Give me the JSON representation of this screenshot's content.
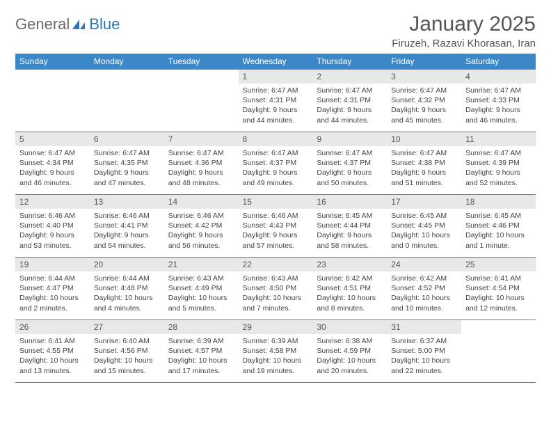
{
  "logo": {
    "general": "General",
    "blue": "Blue"
  },
  "title": "January 2025",
  "location": "Firuzeh, Razavi Khorasan, Iran",
  "colors": {
    "header_bg": "#3b87c8",
    "header_text": "#ffffff",
    "daynum_bg": "#e8e8e8",
    "border": "#3b87c8",
    "logo_gray": "#6a6a6a",
    "logo_blue": "#2a78b8"
  },
  "weekdays": [
    "Sunday",
    "Monday",
    "Tuesday",
    "Wednesday",
    "Thursday",
    "Friday",
    "Saturday"
  ],
  "weeks": [
    [
      null,
      null,
      null,
      {
        "n": "1",
        "sr": "6:47 AM",
        "ss": "4:31 PM",
        "dl": "9 hours and 44 minutes."
      },
      {
        "n": "2",
        "sr": "6:47 AM",
        "ss": "4:31 PM",
        "dl": "9 hours and 44 minutes."
      },
      {
        "n": "3",
        "sr": "6:47 AM",
        "ss": "4:32 PM",
        "dl": "9 hours and 45 minutes."
      },
      {
        "n": "4",
        "sr": "6:47 AM",
        "ss": "4:33 PM",
        "dl": "9 hours and 46 minutes."
      }
    ],
    [
      {
        "n": "5",
        "sr": "6:47 AM",
        "ss": "4:34 PM",
        "dl": "9 hours and 46 minutes."
      },
      {
        "n": "6",
        "sr": "6:47 AM",
        "ss": "4:35 PM",
        "dl": "9 hours and 47 minutes."
      },
      {
        "n": "7",
        "sr": "6:47 AM",
        "ss": "4:36 PM",
        "dl": "9 hours and 48 minutes."
      },
      {
        "n": "8",
        "sr": "6:47 AM",
        "ss": "4:37 PM",
        "dl": "9 hours and 49 minutes."
      },
      {
        "n": "9",
        "sr": "6:47 AM",
        "ss": "4:37 PM",
        "dl": "9 hours and 50 minutes."
      },
      {
        "n": "10",
        "sr": "6:47 AM",
        "ss": "4:38 PM",
        "dl": "9 hours and 51 minutes."
      },
      {
        "n": "11",
        "sr": "6:47 AM",
        "ss": "4:39 PM",
        "dl": "9 hours and 52 minutes."
      }
    ],
    [
      {
        "n": "12",
        "sr": "6:46 AM",
        "ss": "4:40 PM",
        "dl": "9 hours and 53 minutes."
      },
      {
        "n": "13",
        "sr": "6:46 AM",
        "ss": "4:41 PM",
        "dl": "9 hours and 54 minutes."
      },
      {
        "n": "14",
        "sr": "6:46 AM",
        "ss": "4:42 PM",
        "dl": "9 hours and 56 minutes."
      },
      {
        "n": "15",
        "sr": "6:46 AM",
        "ss": "4:43 PM",
        "dl": "9 hours and 57 minutes."
      },
      {
        "n": "16",
        "sr": "6:45 AM",
        "ss": "4:44 PM",
        "dl": "9 hours and 58 minutes."
      },
      {
        "n": "17",
        "sr": "6:45 AM",
        "ss": "4:45 PM",
        "dl": "10 hours and 0 minutes."
      },
      {
        "n": "18",
        "sr": "6:45 AM",
        "ss": "4:46 PM",
        "dl": "10 hours and 1 minute."
      }
    ],
    [
      {
        "n": "19",
        "sr": "6:44 AM",
        "ss": "4:47 PM",
        "dl": "10 hours and 2 minutes."
      },
      {
        "n": "20",
        "sr": "6:44 AM",
        "ss": "4:48 PM",
        "dl": "10 hours and 4 minutes."
      },
      {
        "n": "21",
        "sr": "6:43 AM",
        "ss": "4:49 PM",
        "dl": "10 hours and 5 minutes."
      },
      {
        "n": "22",
        "sr": "6:43 AM",
        "ss": "4:50 PM",
        "dl": "10 hours and 7 minutes."
      },
      {
        "n": "23",
        "sr": "6:42 AM",
        "ss": "4:51 PM",
        "dl": "10 hours and 8 minutes."
      },
      {
        "n": "24",
        "sr": "6:42 AM",
        "ss": "4:52 PM",
        "dl": "10 hours and 10 minutes."
      },
      {
        "n": "25",
        "sr": "6:41 AM",
        "ss": "4:54 PM",
        "dl": "10 hours and 12 minutes."
      }
    ],
    [
      {
        "n": "26",
        "sr": "6:41 AM",
        "ss": "4:55 PM",
        "dl": "10 hours and 13 minutes."
      },
      {
        "n": "27",
        "sr": "6:40 AM",
        "ss": "4:56 PM",
        "dl": "10 hours and 15 minutes."
      },
      {
        "n": "28",
        "sr": "6:39 AM",
        "ss": "4:57 PM",
        "dl": "10 hours and 17 minutes."
      },
      {
        "n": "29",
        "sr": "6:39 AM",
        "ss": "4:58 PM",
        "dl": "10 hours and 19 minutes."
      },
      {
        "n": "30",
        "sr": "6:38 AM",
        "ss": "4:59 PM",
        "dl": "10 hours and 20 minutes."
      },
      {
        "n": "31",
        "sr": "6:37 AM",
        "ss": "5:00 PM",
        "dl": "10 hours and 22 minutes."
      },
      null
    ]
  ],
  "labels": {
    "sunrise": "Sunrise:",
    "sunset": "Sunset:",
    "daylight": "Daylight:"
  }
}
